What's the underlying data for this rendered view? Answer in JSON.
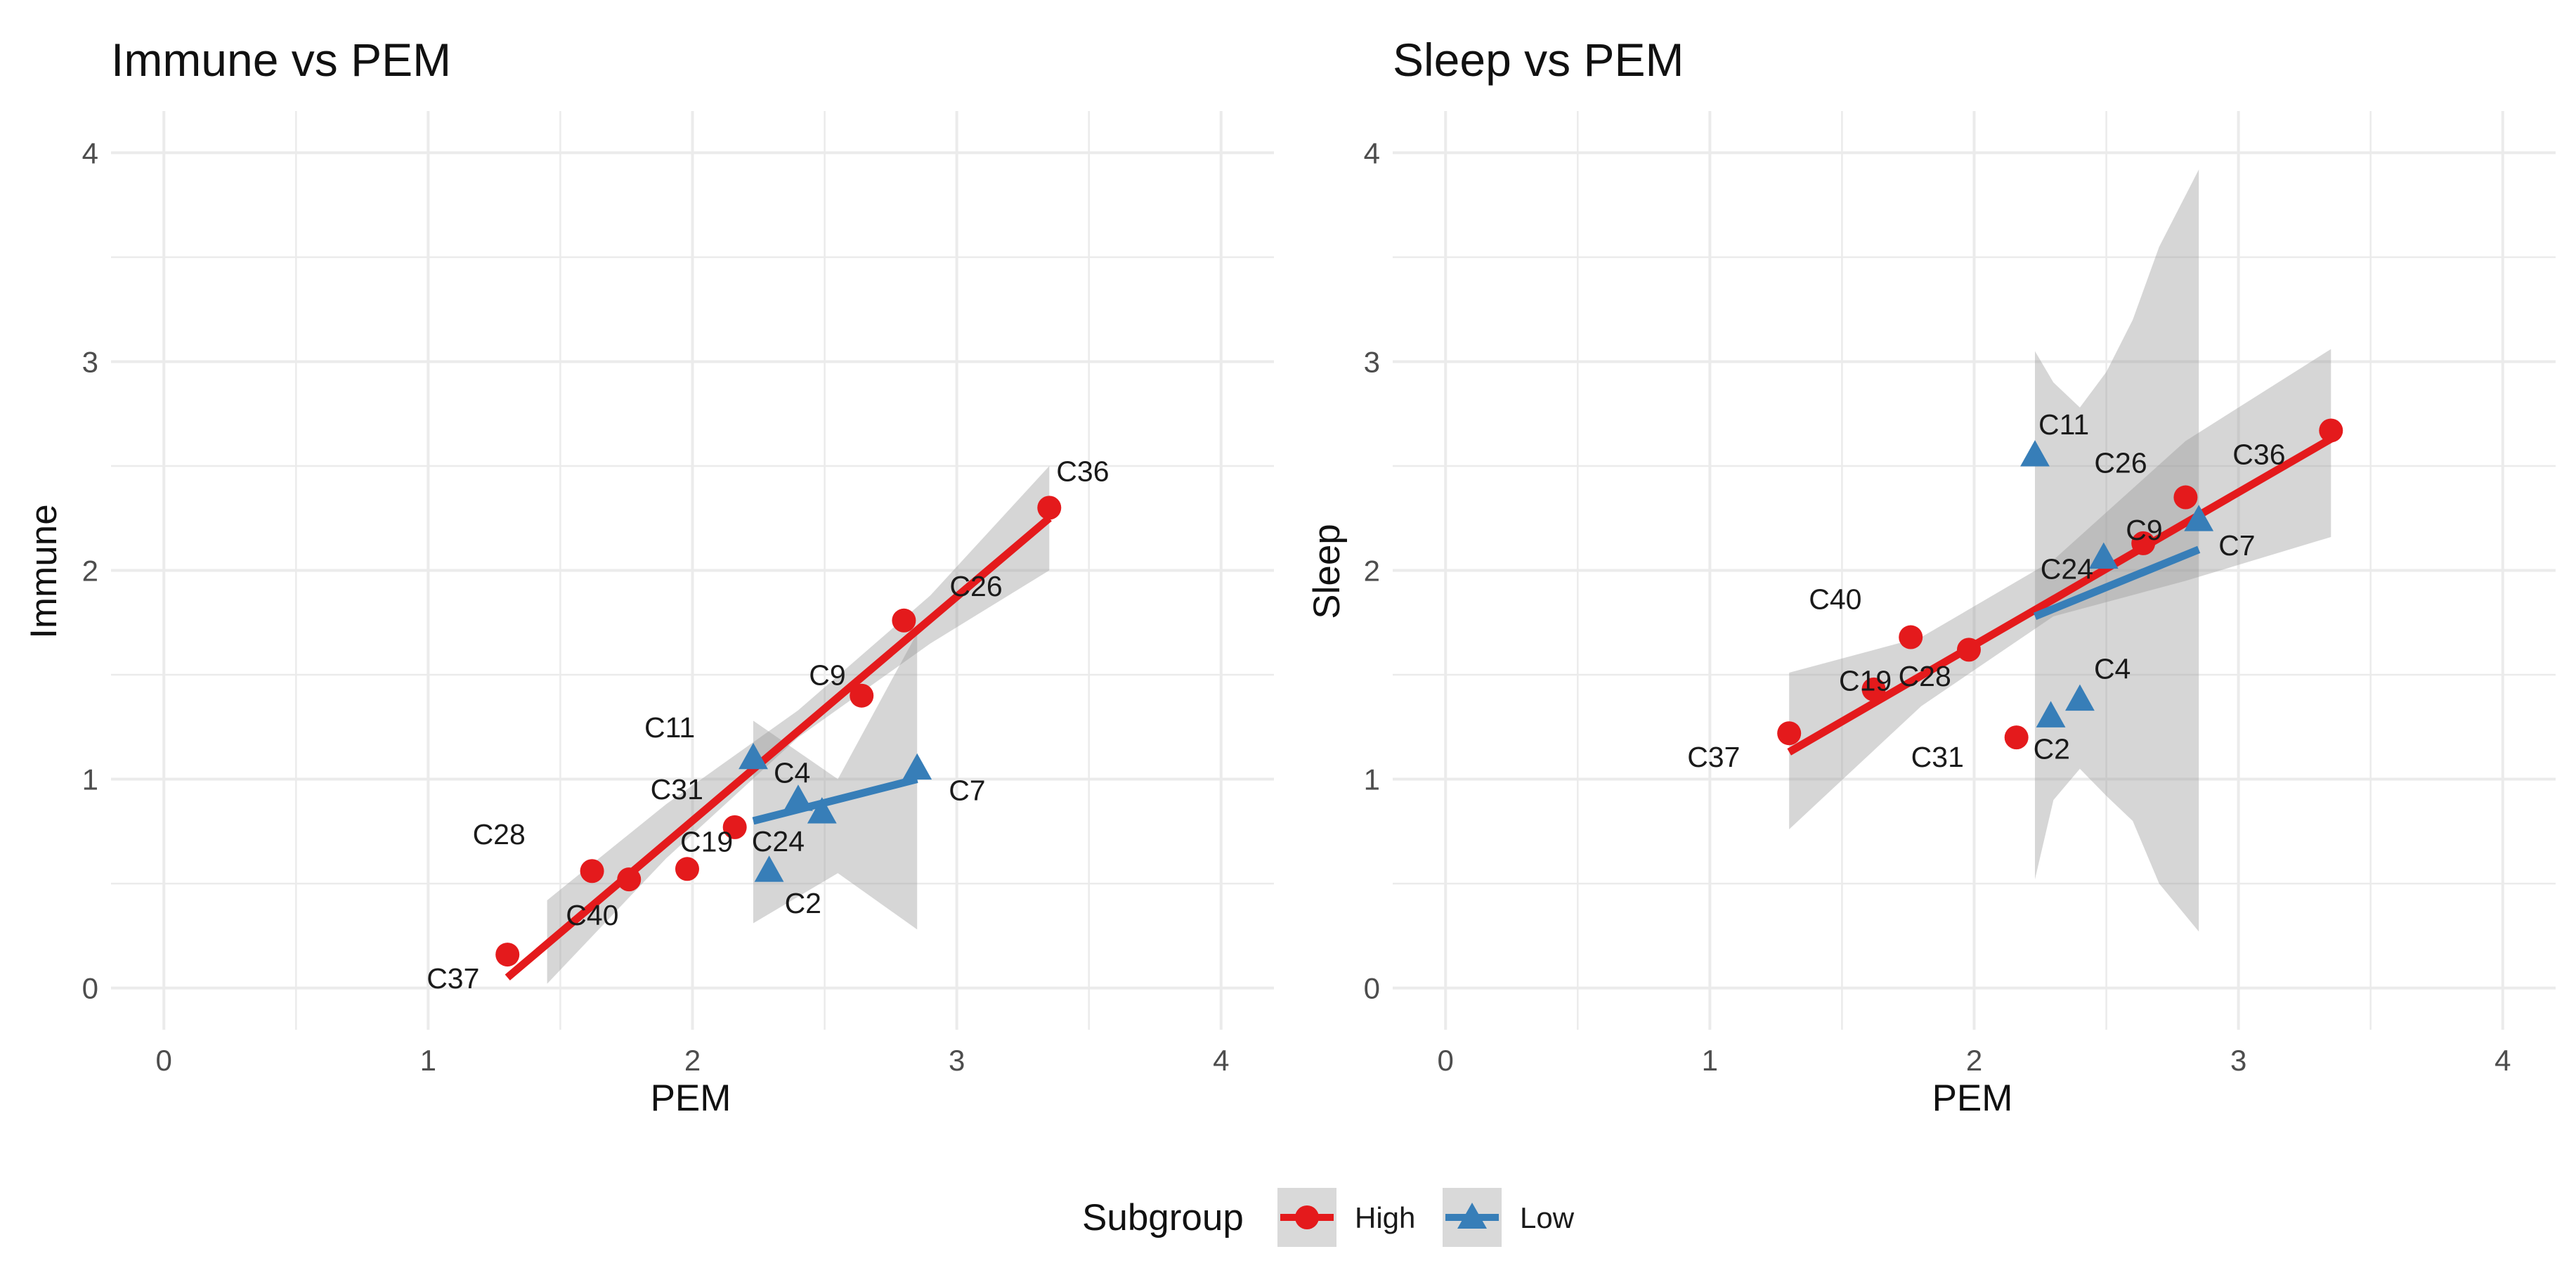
{
  "colors": {
    "High": "#E41A1C",
    "Low": "#377EB8",
    "band": "#999999",
    "grid": "#EBEBEB"
  },
  "legend": {
    "title": "Subgroup",
    "items": [
      {
        "key": "High",
        "label": "High",
        "shape": "circle"
      },
      {
        "key": "Low",
        "label": "Low",
        "shape": "triangle"
      }
    ]
  },
  "chart_data": [
    {
      "type": "scatter",
      "title": "Immune vs PEM",
      "xlabel": "PEM",
      "ylabel": "Immune",
      "xlim": [
        -0.2,
        4.2
      ],
      "ylim": [
        -0.2,
        4.2
      ],
      "xticks": [
        "0",
        "1",
        "2",
        "3",
        "4"
      ],
      "yticks": [
        "0",
        "1",
        "2",
        "3",
        "4"
      ],
      "grid": true,
      "series": [
        {
          "name": "High",
          "points": [
            {
              "label": "C37",
              "x": 1.3,
              "y": 0.16
            },
            {
              "label": "C28",
              "x": 1.62,
              "y": 0.56
            },
            {
              "label": "C40",
              "x": 1.76,
              "y": 0.52
            },
            {
              "label": "C19",
              "x": 1.98,
              "y": 0.57
            },
            {
              "label": "C31",
              "x": 2.16,
              "y": 0.77
            },
            {
              "label": "C9",
              "x": 2.64,
              "y": 1.4
            },
            {
              "label": "C26",
              "x": 2.8,
              "y": 1.76
            },
            {
              "label": "C36",
              "x": 3.35,
              "y": 2.3
            }
          ],
          "fit": {
            "x": [
              1.3,
              3.35
            ],
            "y": [
              0.05,
              2.25
            ]
          },
          "band": {
            "x": [
              1.45,
              1.9,
              2.4,
              2.9,
              3.35
            ],
            "lower": [
              0.02,
              0.62,
              1.2,
              1.65,
              2.0
            ],
            "upper": [
              0.42,
              0.88,
              1.33,
              1.88,
              2.5
            ]
          }
        },
        {
          "name": "Low",
          "points": [
            {
              "label": "C11",
              "x": 2.23,
              "y": 1.1
            },
            {
              "label": "C4",
              "x": 2.4,
              "y": 0.9
            },
            {
              "label": "C24",
              "x": 2.49,
              "y": 0.84
            },
            {
              "label": "C7",
              "x": 2.85,
              "y": 1.05
            },
            {
              "label": "C2",
              "x": 2.29,
              "y": 0.56
            }
          ],
          "fit": {
            "x": [
              2.23,
              2.85
            ],
            "y": [
              0.8,
              1.0
            ]
          },
          "band": {
            "x": [
              2.23,
              2.55,
              2.85
            ],
            "lower": [
              0.31,
              0.55,
              0.28
            ],
            "upper": [
              1.28,
              1.0,
              1.7
            ]
          }
        }
      ]
    },
    {
      "type": "scatter",
      "title": "Sleep vs PEM",
      "xlabel": "PEM",
      "ylabel": "Sleep",
      "xlim": [
        -0.2,
        4.2
      ],
      "ylim": [
        -0.2,
        4.2
      ],
      "xticks": [
        "0",
        "1",
        "2",
        "3",
        "4"
      ],
      "yticks": [
        "0",
        "1",
        "2",
        "3",
        "4"
      ],
      "grid": true,
      "series": [
        {
          "name": "High",
          "points": [
            {
              "label": "C37",
              "x": 1.3,
              "y": 1.22
            },
            {
              "label": "C28",
              "x": 1.62,
              "y": 1.43
            },
            {
              "label": "C40",
              "x": 1.76,
              "y": 1.68
            },
            {
              "label": "C19",
              "x": 1.98,
              "y": 1.62
            },
            {
              "label": "C31",
              "x": 2.16,
              "y": 1.2
            },
            {
              "label": "C9",
              "x": 2.64,
              "y": 2.13
            },
            {
              "label": "C26",
              "x": 2.8,
              "y": 2.35
            },
            {
              "label": "C36",
              "x": 3.35,
              "y": 2.67
            }
          ],
          "fit": {
            "x": [
              1.3,
              3.35
            ],
            "y": [
              1.13,
              2.63
            ]
          },
          "band": {
            "x": [
              1.3,
              1.8,
              2.3,
              2.8,
              3.35
            ],
            "lower": [
              0.76,
              1.35,
              1.78,
              1.95,
              2.16
            ],
            "upper": [
              1.51,
              1.68,
              2.05,
              2.62,
              3.06
            ]
          }
        },
        {
          "name": "Low",
          "points": [
            {
              "label": "C11",
              "x": 2.23,
              "y": 2.55
            },
            {
              "label": "C4",
              "x": 2.4,
              "y": 1.38
            },
            {
              "label": "C24",
              "x": 2.49,
              "y": 2.06
            },
            {
              "label": "C7",
              "x": 2.85,
              "y": 2.24
            },
            {
              "label": "C2",
              "x": 2.29,
              "y": 1.3
            }
          ],
          "fit": {
            "x": [
              2.23,
              2.85
            ],
            "y": [
              1.78,
              2.1
            ]
          },
          "band": {
            "x": [
              2.23,
              2.3,
              2.4,
              2.5,
              2.6,
              2.7,
              2.85
            ],
            "lower": [
              0.52,
              0.9,
              1.05,
              0.92,
              0.8,
              0.5,
              0.27
            ],
            "upper": [
              3.05,
              2.9,
              2.78,
              2.95,
              3.2,
              3.55,
              3.92
            ]
          }
        }
      ]
    }
  ]
}
